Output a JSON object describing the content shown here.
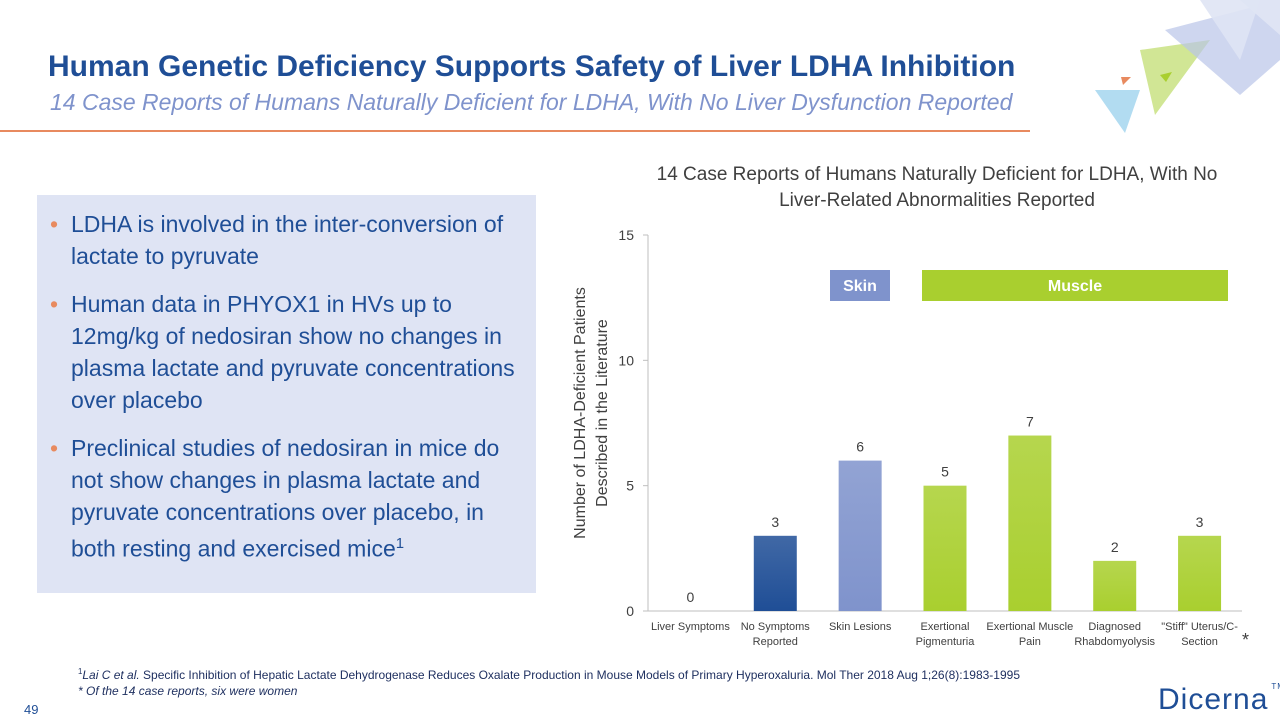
{
  "header": {
    "title": "Human Genetic Deficiency Supports Safety of Liver LDHA Inhibition",
    "subtitle": "14 Case Reports of Humans Naturally Deficient for LDHA, With No Liver Dysfunction Reported"
  },
  "bullets": [
    [
      {
        "text": "LDHA is involved in the inter-conversion of lactate to pyruvate"
      }
    ],
    [
      {
        "text": "Human data in PHYOX1 in HVs up to 12mg/kg of nedosiran show no changes in plasma lactate and pyruvate concentrations over placebo"
      }
    ],
    [
      {
        "text": "Preclinical studies of nedosiran in mice do not show changes in plasma lactate and pyruvate concentrations over placebo, in both resting and exercised mice"
      },
      {
        "sup": "1"
      }
    ]
  ],
  "chart_data": {
    "type": "bar",
    "title": "14 Case Reports of Humans Naturally Deficient for LDHA, With No Liver-Related Abnormalities Reported",
    "y_label": "Number of LDHA-Deficient Patients Described in the Literature",
    "categories": [
      "Liver Symptoms",
      "No Symptoms Reported",
      "Skin Lesions",
      "Exertional Pigmenturia",
      "Exertional Muscle Pain",
      "Diagnosed Rhabdomyolysis",
      "\"Stiff\" Uterus/C-Section"
    ],
    "values": [
      0,
      3,
      6,
      5,
      7,
      2,
      3
    ],
    "colors": [
      "#1f4e96",
      "#1f4e96",
      "#7f93cc",
      "#a9cf2f",
      "#a9cf2f",
      "#a9cf2f",
      "#a9cf2f"
    ],
    "ylim": [
      0,
      15
    ],
    "yticks": [
      0,
      5,
      10,
      15
    ],
    "grid": false,
    "annotations": [
      {
        "text": "Skin",
        "color": "#7f93cc"
      },
      {
        "text": "Muscle",
        "color": "#a9cf2f"
      },
      {
        "text": "*"
      }
    ]
  },
  "footnotes": [
    [
      {
        "sup": "1"
      },
      {
        "italic": "Lai C et al."
      },
      {
        "text": "  Specific Inhibition of Hepatic Lactate Dehydrogenase Reduces Oxalate Production in Mouse Models of Primary Hyperoxaluria.  Mol Ther  2018 Aug 1;26(8):1983-1995"
      }
    ],
    [
      {
        "italic": "* Of the 14 case reports, six were women"
      }
    ]
  ],
  "page_number": "49",
  "logo": {
    "text": "Dicerna",
    "mark": "TM"
  }
}
